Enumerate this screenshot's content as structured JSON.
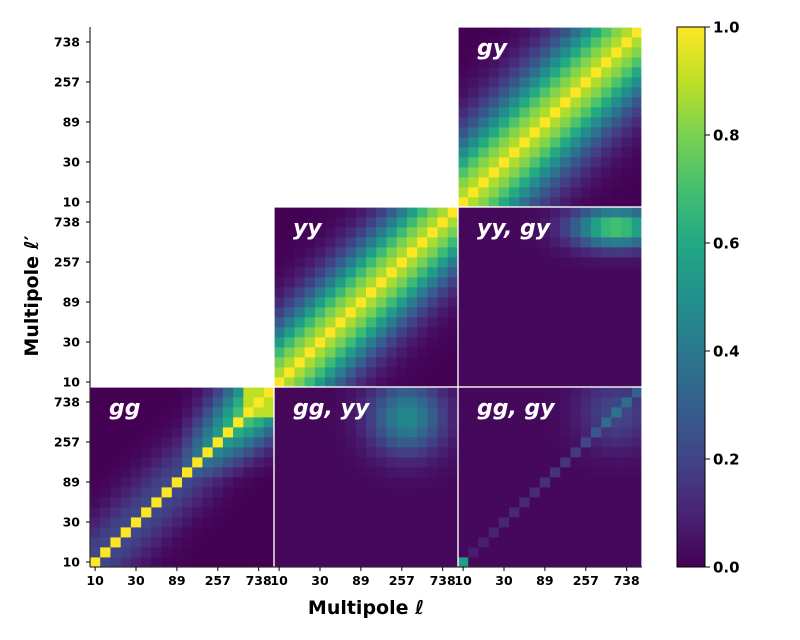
{
  "chart_data": {
    "type": "heatmap",
    "title": "",
    "xlabel": "Multipole ℓ",
    "ylabel": "Multipole ℓ′",
    "bins_per_block": 18,
    "tick_labels": [
      "10",
      "30",
      "89",
      "257",
      "738"
    ],
    "tick_bins": [
      0,
      4,
      8,
      12,
      16
    ],
    "colorbar": {
      "range": [
        0.0,
        1.0
      ],
      "tick_labels": [
        "0.0",
        "0.2",
        "0.4",
        "0.6",
        "0.8",
        "1.0"
      ],
      "colormap": "viridis"
    },
    "panels": [
      {
        "id": "gg",
        "label": "gg",
        "row": 0,
        "col": 0,
        "kind": "auto",
        "width": 3.0,
        "highl_mix": true
      },
      {
        "id": "gg-yy",
        "label": "gg, yy",
        "row": 0,
        "col": 1,
        "kind": "cross",
        "diag_amp": 0.0,
        "blob": {
          "x": 12.5,
          "y": 14.5,
          "amp": 0.45,
          "sx": 2.5,
          "sy": 2.5
        }
      },
      {
        "id": "gg-gy",
        "label": "gg, gy",
        "row": 0,
        "col": 2,
        "kind": "cross",
        "diag_amp": 0.18,
        "corner": 0.55,
        "blob": {
          "x": 15.0,
          "y": 15.0,
          "amp": 0.2,
          "sx": 2.5,
          "sy": 2.5
        }
      },
      {
        "id": "yy",
        "label": "yy",
        "row": 1,
        "col": 1,
        "kind": "auto",
        "width": 4.0
      },
      {
        "id": "yy-gy",
        "label": "yy, gy",
        "row": 1,
        "col": 2,
        "kind": "cross",
        "diag_amp": 0.0,
        "blob": {
          "x": 15.0,
          "y": 15.5,
          "amp": 0.72,
          "sx": 3.0,
          "sy": 1.4
        }
      },
      {
        "id": "gy",
        "label": "gy",
        "row": 2,
        "col": 2,
        "kind": "auto",
        "width": 4.5
      }
    ]
  }
}
